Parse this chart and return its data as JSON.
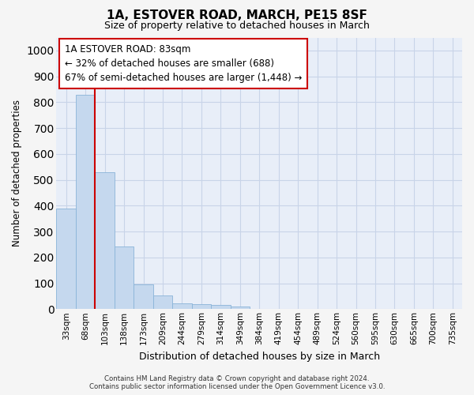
{
  "title1": "1A, ESTOVER ROAD, MARCH, PE15 8SF",
  "title2": "Size of property relative to detached houses in March",
  "xlabel": "Distribution of detached houses by size in March",
  "ylabel": "Number of detached properties",
  "bar_color": "#c5d8ee",
  "bar_edge_color": "#8ab4d8",
  "bin_labels": [
    "33sqm",
    "68sqm",
    "103sqm",
    "138sqm",
    "173sqm",
    "209sqm",
    "244sqm",
    "279sqm",
    "314sqm",
    "349sqm",
    "384sqm",
    "419sqm",
    "454sqm",
    "489sqm",
    "524sqm",
    "560sqm",
    "595sqm",
    "630sqm",
    "665sqm",
    "700sqm",
    "735sqm"
  ],
  "bar_heights": [
    390,
    830,
    530,
    242,
    97,
    52,
    22,
    18,
    15,
    10,
    0,
    0,
    0,
    0,
    0,
    0,
    0,
    0,
    0,
    0,
    0
  ],
  "ylim": [
    0,
    1050
  ],
  "yticks": [
    0,
    100,
    200,
    300,
    400,
    500,
    600,
    700,
    800,
    900,
    1000
  ],
  "vline_x": 1.5,
  "vline_color": "#cc0000",
  "annotation_text": "1A ESTOVER ROAD: 83sqm\n← 32% of detached houses are smaller (688)\n67% of semi-detached houses are larger (1,448) →",
  "annotation_box_color": "#ffffff",
  "annotation_box_edge": "#cc0000",
  "footer1": "Contains HM Land Registry data © Crown copyright and database right 2024.",
  "footer2": "Contains public sector information licensed under the Open Government Licence v3.0.",
  "grid_color": "#c8d4e8",
  "background_color": "#e8eef8",
  "fig_background": "#f5f5f5"
}
